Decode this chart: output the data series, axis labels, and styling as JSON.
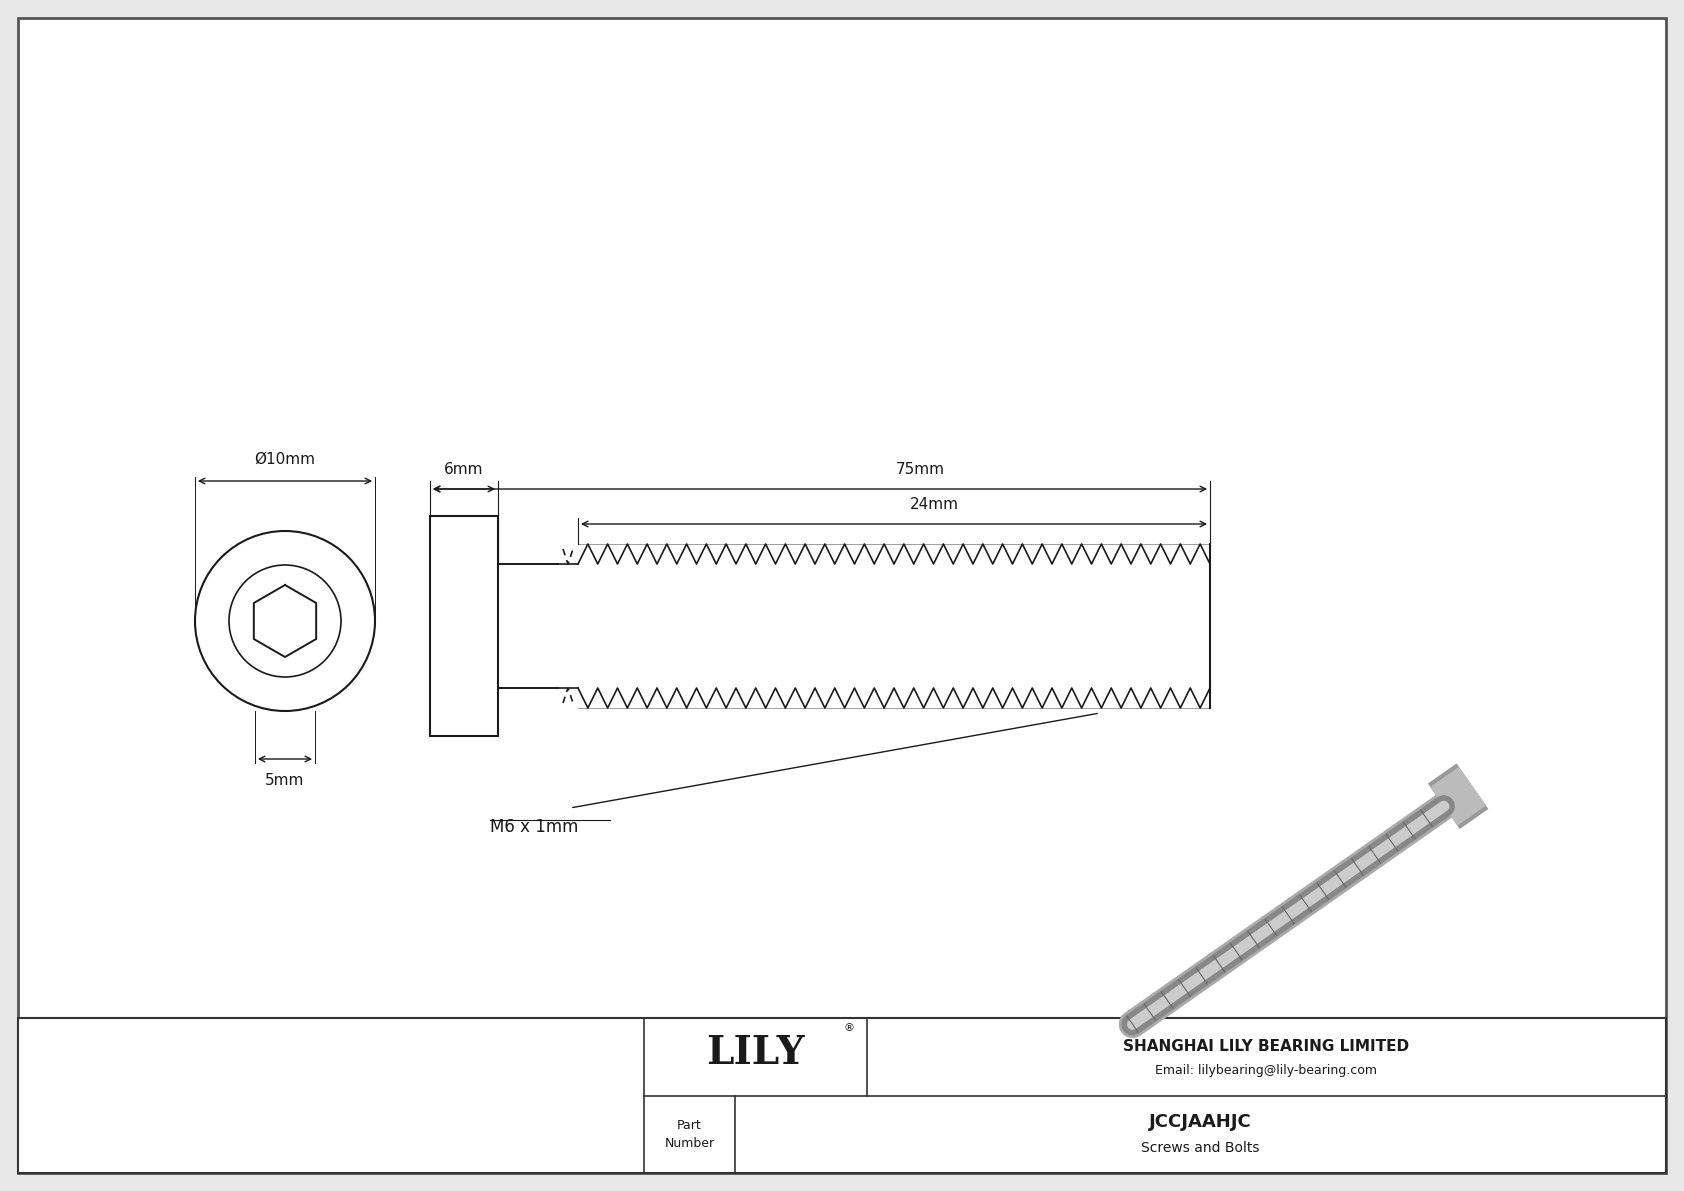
{
  "bg_color": "#e8e8e8",
  "drawing_bg": "#ffffff",
  "line_color": "#1a1a1a",
  "company": "SHANGHAI LILY BEARING LIMITED",
  "email": "Email: lilybearing@lily-bearing.com",
  "part_number": "JCCJAAHJC",
  "part_type": "Screws and Bolts",
  "part_label": "Part\nNumber",
  "dim_d": "Ø10mm",
  "dim_h": "5mm",
  "dim_head": "6mm",
  "dim_length": "75mm",
  "dim_thread": "24mm",
  "dim_thread_label": "M6 x 1mm"
}
